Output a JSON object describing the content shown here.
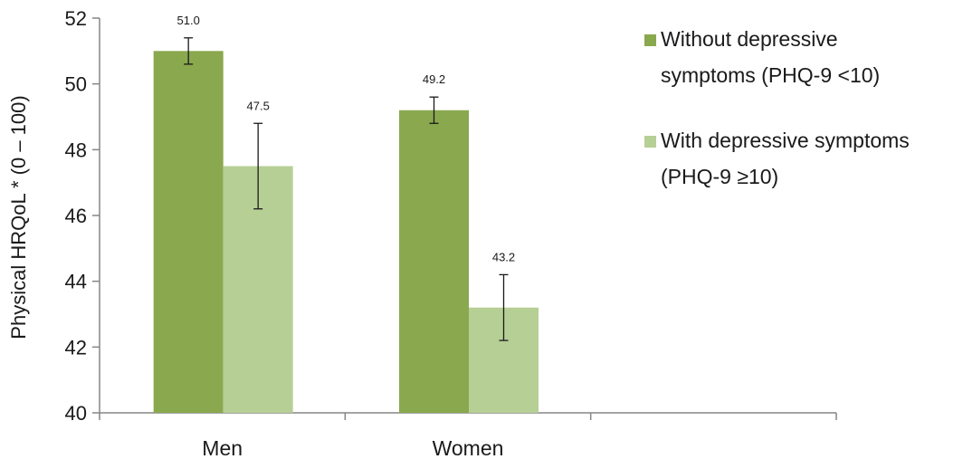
{
  "chart_data": {
    "type": "bar",
    "title": "",
    "xlabel": "",
    "ylabel": "Physical HRQoL * (0 – 100)",
    "ylim": [
      40,
      52
    ],
    "y_ticks": [
      40,
      42,
      44,
      46,
      48,
      50,
      52
    ],
    "categories": [
      "Men",
      "Women"
    ],
    "series": [
      {
        "name": "Without depressive symptoms (PHQ-9 <10)",
        "legend_lines": [
          "Without depressive",
          "symptoms (PHQ-9 <10)"
        ],
        "color": "#8aa84e",
        "values": [
          51.0,
          49.2
        ],
        "labels": [
          "51.0",
          "49.2"
        ],
        "error_low": [
          50.6,
          48.8
        ],
        "error_high": [
          51.4,
          49.6
        ]
      },
      {
        "name": "With depressive symptoms (PHQ-9 ≥10)",
        "legend_lines": [
          "With depressive symptoms",
          "(PHQ-9 ≥10)"
        ],
        "color": "#b6cf95",
        "values": [
          47.5,
          43.2
        ],
        "labels": [
          "47.5",
          "43.2"
        ],
        "error_low": [
          46.2,
          42.2
        ],
        "error_high": [
          48.8,
          44.2
        ]
      }
    ],
    "legend_position": "right",
    "grid": false
  }
}
